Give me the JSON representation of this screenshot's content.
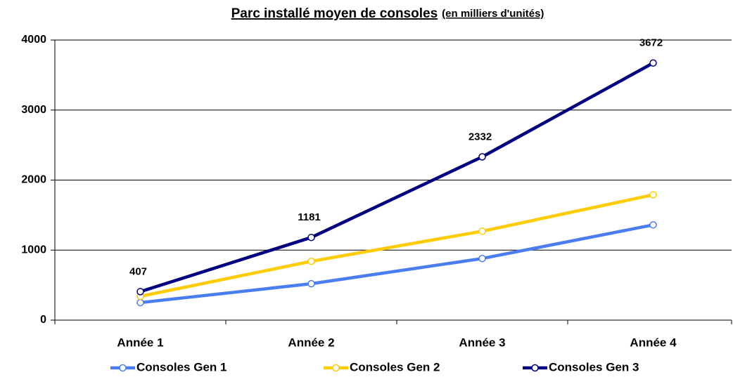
{
  "chart_data": {
    "type": "line",
    "title": "Parc installé moyen de consoles",
    "subtitle": "(en milliers d'unités)",
    "categories": [
      "Année 1",
      "Année 2",
      "Année 3",
      "Année 4"
    ],
    "series": [
      {
        "name": "Consoles Gen 1",
        "color": "#4a7ef0",
        "values": [
          250,
          520,
          880,
          1360
        ]
      },
      {
        "name": "Consoles Gen 2",
        "color": "#ffcc00",
        "values": [
          340,
          840,
          1270,
          1790
        ]
      },
      {
        "name": "Consoles Gen 3",
        "color": "#000080",
        "values": [
          407,
          1181,
          2332,
          3672
        ],
        "data_labels": true
      }
    ],
    "ylim": [
      0,
      4000
    ],
    "yticks": [
      0,
      1000,
      2000,
      3000,
      4000
    ],
    "grid": true,
    "legend": "bottom"
  }
}
